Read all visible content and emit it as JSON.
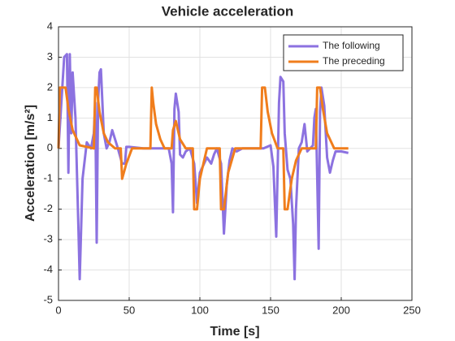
{
  "chart_data": {
    "type": "line",
    "title": "Vehicle acceleration",
    "xlabel": "Time [s]",
    "ylabel": "Acceleration [m/s²]",
    "xlim": [
      0,
      250
    ],
    "xticks": [
      0,
      50,
      100,
      150,
      200,
      250
    ],
    "ylim": [
      -5,
      4
    ],
    "yticks": [
      -5,
      -4,
      -3,
      -2,
      -1,
      0,
      1,
      2,
      3,
      4
    ],
    "grid": true,
    "legend": "northeast",
    "series": [
      {
        "name": "The following",
        "color": "#8c72e0",
        "x": [
          0,
          2,
          4,
          6,
          7,
          8,
          9,
          10,
          12,
          14,
          15,
          17,
          20,
          23,
          25,
          26,
          27,
          28,
          29,
          30,
          32,
          34,
          36,
          38,
          40,
          42,
          45,
          47,
          48,
          50,
          60,
          70,
          78,
          80,
          81,
          82,
          83,
          85,
          86,
          88,
          90,
          93,
          96,
          98,
          100,
          103,
          105,
          108,
          110,
          112,
          115,
          117,
          119,
          121,
          123,
          126,
          130,
          140,
          145,
          150,
          152,
          154,
          156,
          157,
          159,
          160,
          162,
          164,
          166,
          167,
          168,
          170,
          172,
          174,
          176,
          178,
          180,
          181,
          182,
          184,
          185,
          186,
          188,
          190,
          192,
          194,
          196,
          200,
          205
        ],
        "values": [
          0,
          1.5,
          3.0,
          3.1,
          -0.8,
          3.1,
          0.5,
          2.5,
          1.0,
          -2.5,
          -4.3,
          -1,
          0.2,
          0,
          0.5,
          1.5,
          -3.1,
          1.5,
          2.5,
          2.6,
          0.5,
          0,
          0.2,
          0.6,
          0.3,
          0,
          -0.5,
          -0.5,
          0.05,
          0.05,
          0,
          0,
          0,
          -0.5,
          -2.1,
          1.3,
          1.8,
          1.2,
          -0.2,
          -0.3,
          -0.1,
          0,
          -0.5,
          -1.8,
          -0.8,
          -0.5,
          -0.3,
          -0.5,
          -0.2,
          0,
          -0.5,
          -2.8,
          -1.2,
          -0.4,
          0,
          -0.1,
          0,
          0,
          0,
          0.1,
          -0.6,
          -2.9,
          1.5,
          2.35,
          2.2,
          0.5,
          -0.7,
          -1,
          -2.5,
          -4.3,
          -2,
          0,
          0.2,
          0.8,
          -0.1,
          0,
          0.1,
          1.0,
          1.3,
          -3.3,
          1.2,
          2.0,
          1.4,
          -0.3,
          -0.8,
          -0.4,
          -0.1,
          -0.1,
          -0.15
        ]
      },
      {
        "name": "The preceding",
        "color": "#f07d1c",
        "x": [
          0,
          1,
          5,
          7,
          10,
          15,
          25,
          26,
          27,
          29,
          32,
          35,
          40,
          44,
          45,
          48,
          52,
          65,
          66,
          67,
          69,
          72,
          75,
          80,
          81,
          83,
          86,
          90,
          95,
          96,
          98,
          100,
          105,
          114,
          115,
          117,
          120,
          125,
          143,
          144,
          146,
          148,
          151,
          155,
          159,
          160,
          162,
          165,
          168,
          172,
          182,
          183,
          185,
          187,
          190,
          195,
          205
        ],
        "values": [
          0,
          2,
          2,
          1.3,
          0.6,
          0.1,
          0,
          2,
          2,
          1.2,
          0.5,
          0.2,
          0,
          0,
          -1,
          -0.5,
          0,
          0,
          2,
          1.5,
          0.8,
          0.3,
          0,
          0,
          0.6,
          0.9,
          0.3,
          0,
          0,
          -2,
          -2,
          -1,
          0,
          0,
          -2,
          -2,
          -0.8,
          0,
          0,
          2,
          2,
          1.2,
          0.5,
          0,
          0,
          -2,
          -2,
          -1,
          -0.4,
          0,
          0,
          2,
          2,
          1.3,
          0.5,
          0,
          0
        ]
      }
    ]
  }
}
